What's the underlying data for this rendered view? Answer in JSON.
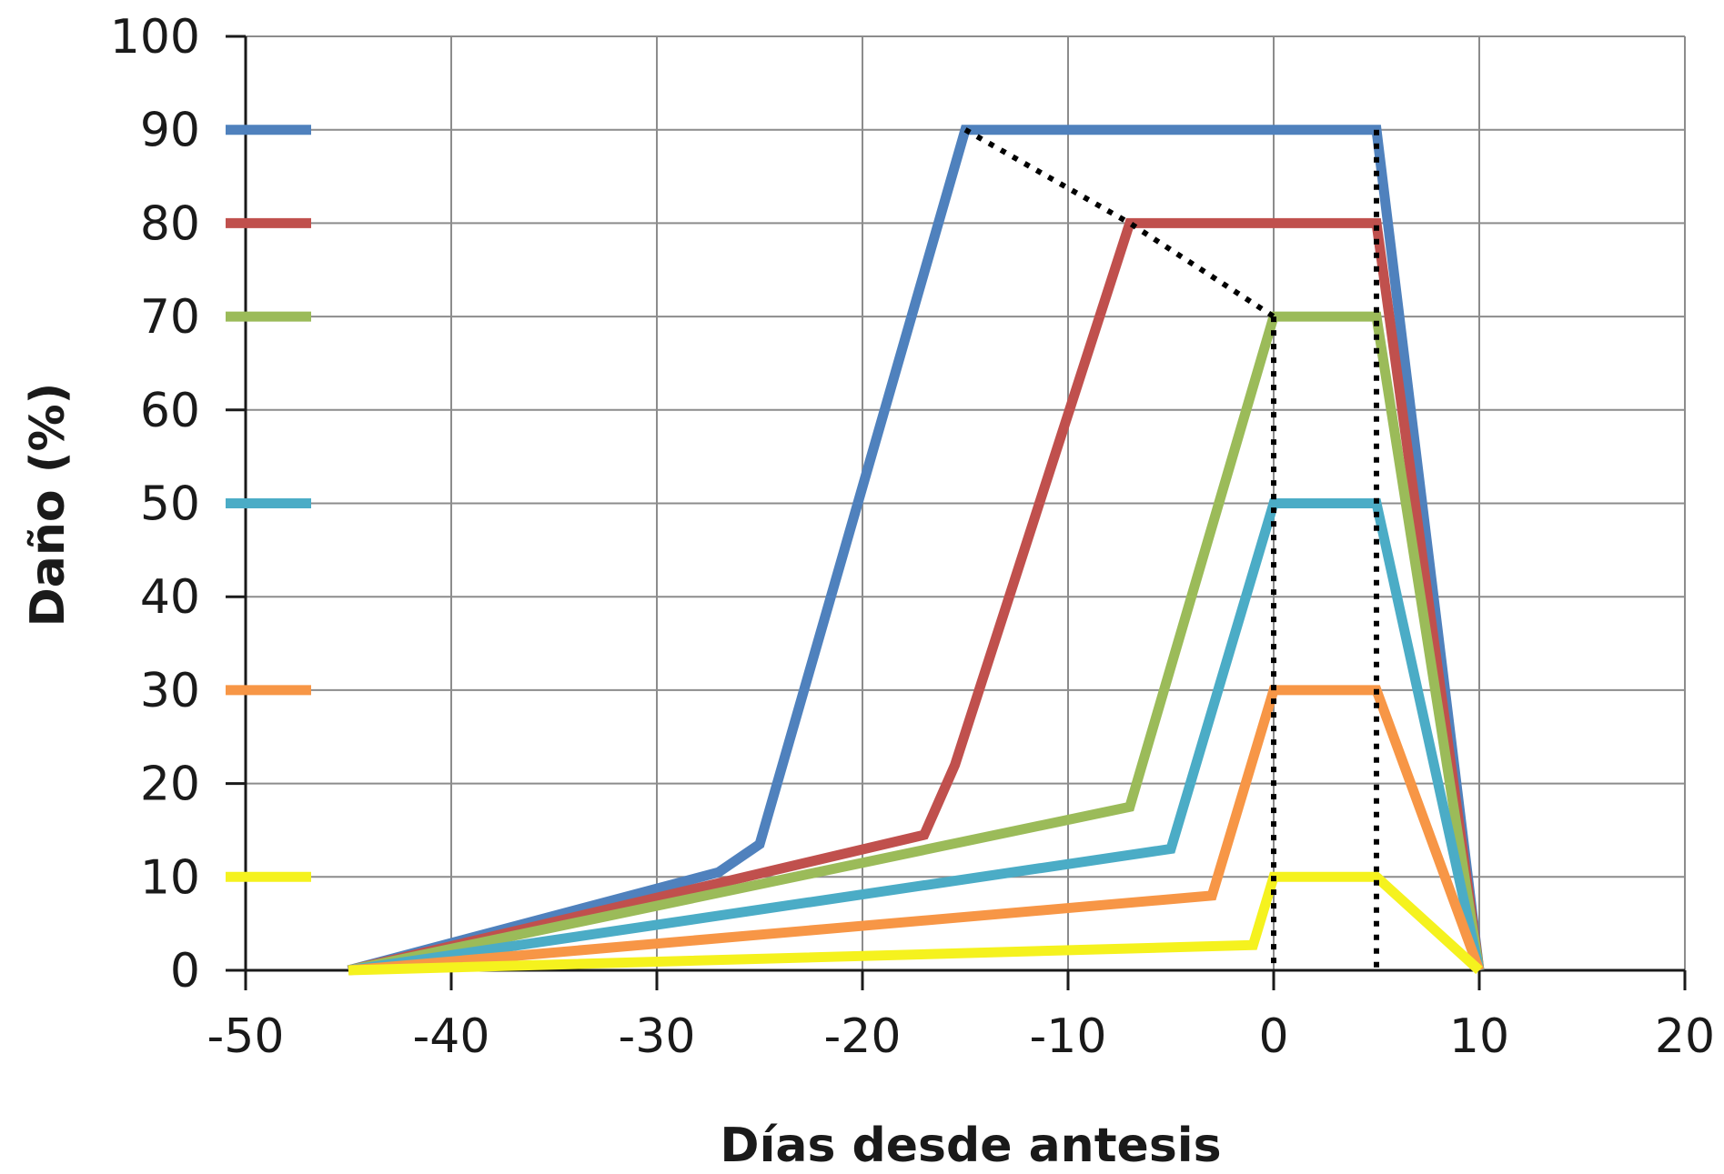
{
  "chart_data": {
    "type": "line",
    "title": "",
    "xlabel": "Días desde antesis",
    "ylabel": "Daño (%)",
    "xlim": [
      -50,
      20
    ],
    "ylim": [
      0,
      100
    ],
    "x_ticks": [
      -50,
      -40,
      -30,
      -20,
      -10,
      0,
      10,
      20
    ],
    "y_ticks": [
      0,
      10,
      20,
      30,
      40,
      50,
      60,
      70,
      80,
      90,
      100
    ],
    "x_tick_labels": [
      "-50",
      "-40",
      "-30",
      "-20",
      "-10",
      "0",
      "10",
      "20"
    ],
    "y_tick_labels": [
      "0",
      "10",
      "20",
      "30",
      "40",
      "50",
      "60",
      "70",
      "80",
      "90",
      "100"
    ],
    "grid": true,
    "series": [
      {
        "color": "#4f81bd",
        "x": [
          -45,
          -27,
          -25,
          -15,
          5,
          10
        ],
        "y": [
          0,
          10.5,
          13.5,
          90,
          90,
          0
        ]
      },
      {
        "color": "#c0504d",
        "x": [
          -45,
          -17,
          -15.5,
          -7,
          5,
          10
        ],
        "y": [
          0,
          14.5,
          22,
          80,
          80,
          0
        ]
      },
      {
        "color": "#9bbb59",
        "x": [
          -45,
          -7,
          0,
          5,
          10
        ],
        "y": [
          0,
          17.5,
          70,
          70,
          0
        ]
      },
      {
        "color": "#4bacc6",
        "x": [
          -45,
          -5,
          0,
          5,
          10
        ],
        "y": [
          0,
          13,
          50,
          50,
          0
        ]
      },
      {
        "color": "#f79646",
        "x": [
          -45,
          -3,
          0,
          5,
          10
        ],
        "y": [
          0,
          8,
          30,
          30,
          0
        ]
      },
      {
        "color": "#f5f21e",
        "x": [
          -45,
          -1,
          0,
          5,
          10
        ],
        "y": [
          0,
          2.7,
          10,
          10,
          0
        ]
      }
    ],
    "legend_levels": [
      90,
      80,
      70,
      50,
      30,
      10
    ],
    "reference_lines": [
      {
        "style": "dotted",
        "x": [
          -15,
          -7,
          0
        ],
        "y": [
          90,
          80,
          70
        ]
      },
      {
        "style": "dotted",
        "x": [
          0,
          0
        ],
        "y": [
          70,
          0
        ]
      },
      {
        "style": "dotted",
        "x": [
          5,
          5
        ],
        "y": [
          90,
          0
        ]
      }
    ]
  }
}
